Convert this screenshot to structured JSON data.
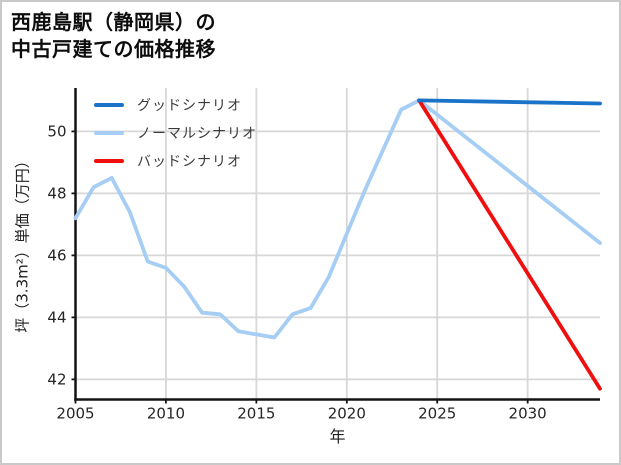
{
  "title": {
    "line1": "西鹿島駅（静岡県）の",
    "line2": "中古戸建ての価格推移"
  },
  "chart_data": {
    "type": "line",
    "title": "西鹿島駅（静岡県）の中古戸建ての価格推移",
    "xlabel": "年",
    "ylabel": "坪（3.3m²）単価（万円）",
    "xlim": [
      2005,
      2034
    ],
    "ylim": [
      41.35,
      51.4
    ],
    "xticks": [
      2005,
      2010,
      2015,
      2020,
      2025,
      2030
    ],
    "yticks": [
      42,
      44,
      46,
      48,
      50
    ],
    "grid": true,
    "legend_position": "upper-left",
    "series": [
      {
        "name": "グッドシナリオ",
        "color": "#1a73c8",
        "x": [
          2024,
          2034
        ],
        "y": [
          51.0,
          50.9
        ]
      },
      {
        "name": "ノーマルシナリオ",
        "color": "#a6cdf3",
        "x": [
          2005,
          2006,
          2007,
          2008,
          2009,
          2010,
          2011,
          2012,
          2013,
          2014,
          2015,
          2016,
          2017,
          2018,
          2019,
          2020,
          2021,
          2022,
          2023,
          2024,
          2034
        ],
        "y": [
          47.2,
          48.2,
          48.5,
          47.4,
          45.8,
          45.6,
          45.0,
          44.15,
          44.1,
          43.55,
          43.45,
          43.35,
          44.1,
          44.3,
          45.3,
          46.7,
          48.1,
          49.4,
          50.7,
          51.0,
          46.4
        ]
      },
      {
        "name": "バッドシナリオ",
        "color": "#ef0f0f",
        "x": [
          2024,
          2034
        ],
        "y": [
          51.0,
          41.7
        ]
      }
    ]
  },
  "colors": {
    "grid": "#d7d7d7",
    "spine": "#141414",
    "tick_label": "#262626",
    "legend_text": "#3a3a3a",
    "background": "#ffffff",
    "frame_border": "#c9c9c9"
  }
}
